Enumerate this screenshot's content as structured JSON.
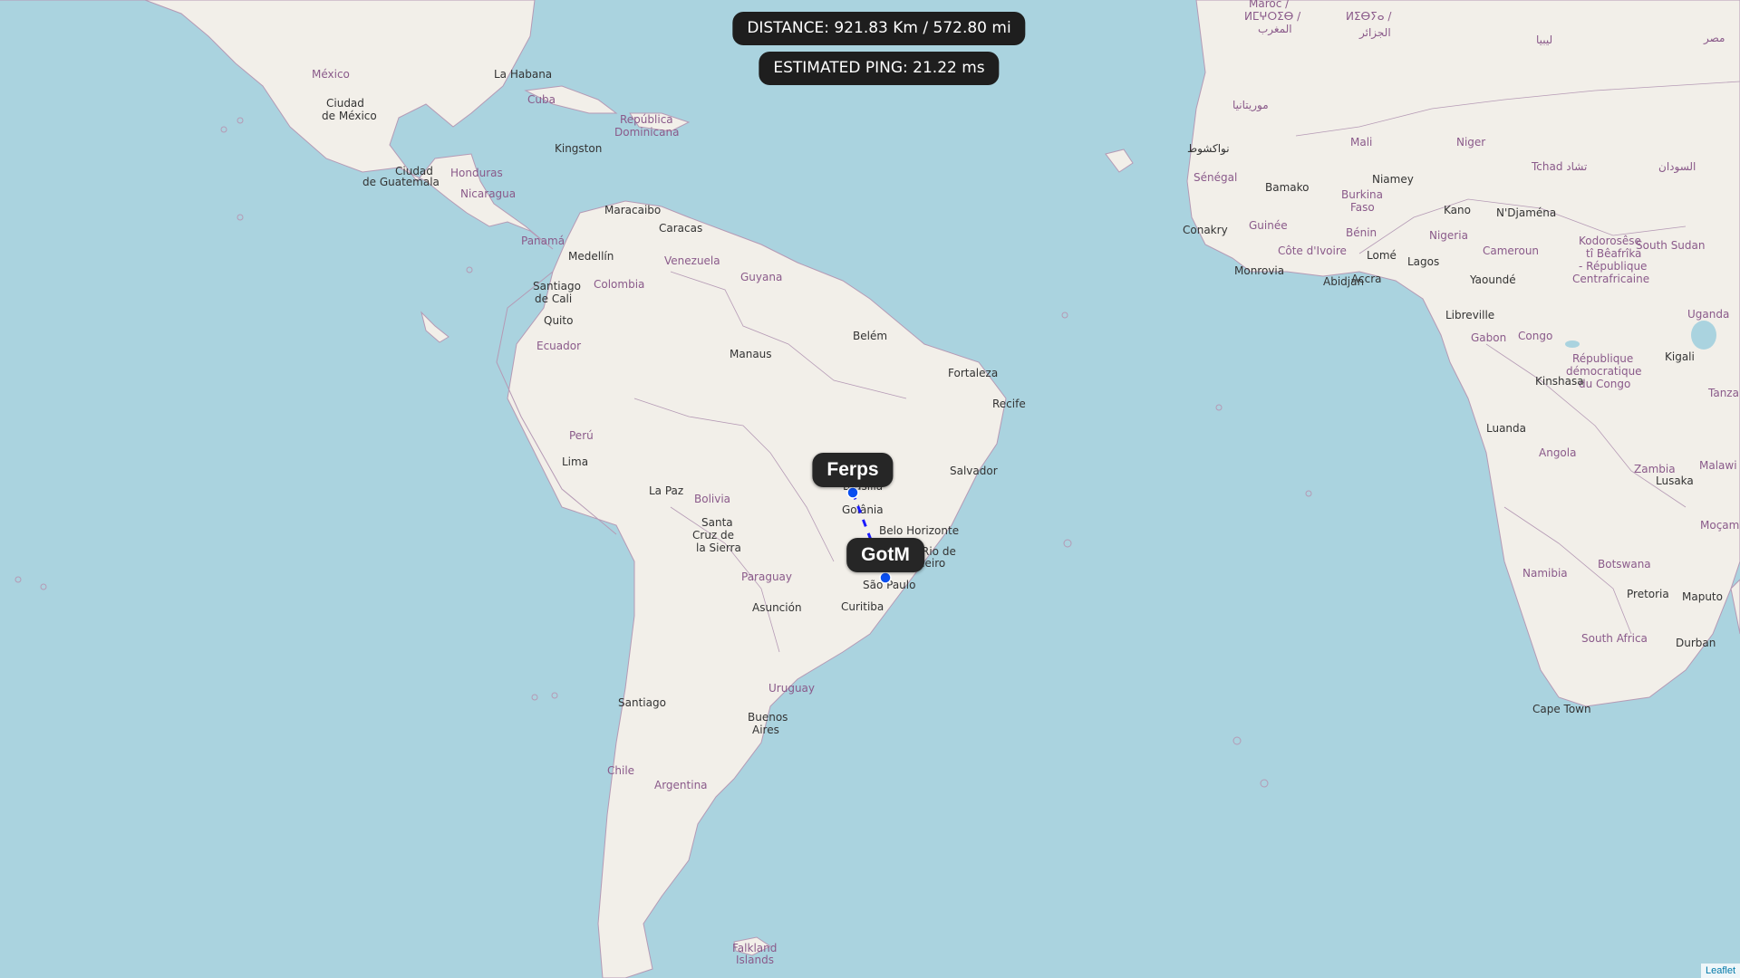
{
  "banner": {
    "distance": "DISTANCE: 921.83 Km / 572.80 mi",
    "ping": "ESTIMATED PING: 21.22 ms"
  },
  "markers": [
    {
      "name": "Ferps"
    },
    {
      "name": "GotM"
    }
  ],
  "attribution": "Leaflet",
  "map_labels": {
    "countries": [
      "México",
      "Cuba",
      "República Dominicana",
      "Honduras",
      "Nicaragua",
      "Panamá",
      "Venezuela",
      "Colombia",
      "Guyana",
      "Ecuador",
      "Perú",
      "Bolivia",
      "Paraguay",
      "Uruguay",
      "Chile",
      "Argentina",
      "Falkland Islands",
      "Mali",
      "Niger",
      "Tchad",
      "Sénégal",
      "Burkina Faso",
      "Guinée",
      "Bénin",
      "Nigeria",
      "Côte d'Ivoire",
      "Cameroun",
      "Gabon",
      "Congo",
      "République démocratique du Congo",
      "Angola",
      "Namibia",
      "Botswana",
      "South Africa",
      "Zambia",
      "Malawi",
      "Moçambique",
      "Tanzania",
      "Uganda",
      "South Sudan",
      "Kodorosêse tî Bêafrîka - République Centrafricaine",
      "Maroc / ⵍⵎⵖⵔⵉⴱ / المغرب",
      "مصر",
      "ليبيا",
      "موريتانيا",
      "السودان"
    ],
    "cities": [
      "Ciudad de México",
      "La Habana",
      "Kingston",
      "Ciudad de Guatemala",
      "Maracaibo",
      "Caracas",
      "Medellín",
      "Santiago de Cali",
      "Quito",
      "Manaus",
      "Belém",
      "Fortaleza",
      "Recife",
      "Salvador",
      "Lima",
      "La Paz",
      "Santa Cruz de la Sierra",
      "Brasília",
      "Goiânia",
      "Belo Horizonte",
      "Rio de Janeiro",
      "São Paulo",
      "Curitiba",
      "Asunción",
      "Santiago",
      "Buenos Aires",
      "Bamako",
      "Niamey",
      "Conakry",
      "Monrovia",
      "Abidjan",
      "Accra",
      "Lomé",
      "Lagos",
      "Kano",
      "N'Djaména",
      "Yaoundé",
      "Libreville",
      "Kinshasa",
      "Luanda",
      "Kigali",
      "Lusaka",
      "Pretoria",
      "Maputo",
      "Durban",
      "Cape Town",
      "نواكشوط"
    ]
  },
  "colors": {
    "water": "#aad3df",
    "land": "#f2efe9",
    "border": "#b59ab5",
    "line": "#1a1aff",
    "marker": "#0a4ff0"
  }
}
